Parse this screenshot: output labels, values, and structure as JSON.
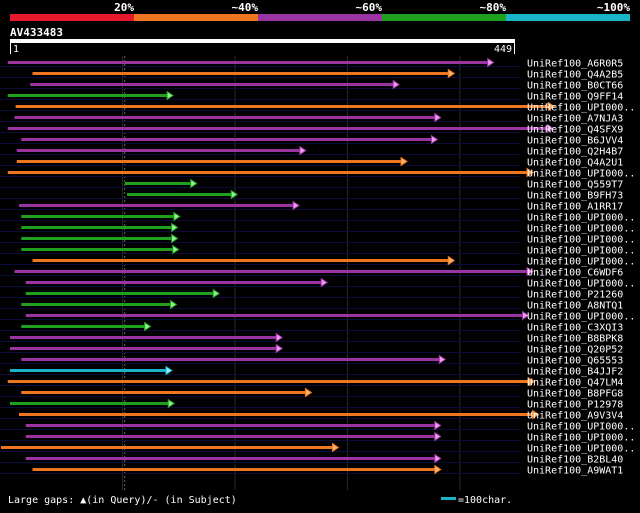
{
  "legend": {
    "segments": [
      {
        "label": "",
        "color": "#e8192c"
      },
      {
        "label": "20%",
        "color": "#ef7620"
      },
      {
        "label": "~40%",
        "color": "#9b34a3"
      },
      {
        "label": "~60%",
        "color": "#1ea01e"
      },
      {
        "label": "~80%",
        "color": "#19b4c8"
      },
      {
        "label": "~100%",
        "color": ""
      }
    ]
  },
  "query": {
    "id": "AV433483",
    "start_label": "1",
    "end_label": "449",
    "length": 449
  },
  "footer": {
    "gaps_label": "Large gaps: ▲(in Query)/- (in Subject)",
    "scale_label": "=100char.",
    "scale_color": "#19b4c8"
  },
  "hits": [
    {
      "name": "UniRef100_A6R0R5",
      "start": -2,
      "end": 430,
      "color": "purple"
    },
    {
      "name": "UniRef100_Q4A2B5",
      "start": 20,
      "end": 395,
      "color": "orange"
    },
    {
      "name": "UniRef100_B0CT66",
      "start": 18,
      "end": 346,
      "color": "purple"
    },
    {
      "name": "UniRef100_Q9FF14",
      "start": -2,
      "end": 145,
      "color": "green"
    },
    {
      "name": "UniRef100_UPI000..",
      "start": 5,
      "end": 484,
      "color": "orange"
    },
    {
      "name": "UniRef100_A7NJA3",
      "start": 4,
      "end": 383,
      "color": "purple"
    },
    {
      "name": "UniRef100_Q4SFX9",
      "start": -2,
      "end": 483,
      "color": "purple"
    },
    {
      "name": "UniRef100_B6JVV4",
      "start": 10,
      "end": 380,
      "color": "purple"
    },
    {
      "name": "UniRef100_Q2H4B7",
      "start": 6,
      "end": 263,
      "color": "purple"
    },
    {
      "name": "UniRef100_Q4A2U1",
      "start": 6,
      "end": 353,
      "color": "orange"
    },
    {
      "name": "UniRef100_UPI000..",
      "start": -2,
      "end": 465,
      "color": "orange"
    },
    {
      "name": "UniRef100_Q559T7",
      "start": 102,
      "end": 166,
      "color": "green"
    },
    {
      "name": "UniRef100_B9FH73",
      "start": 104,
      "end": 202,
      "color": "green"
    },
    {
      "name": "UniRef100_A1RR17",
      "start": 8,
      "end": 257,
      "color": "purple"
    },
    {
      "name": "UniRef100_UPI000..",
      "start": 10,
      "end": 151,
      "color": "green"
    },
    {
      "name": "UniRef100_UPI000..",
      "start": 10,
      "end": 149,
      "color": "green"
    },
    {
      "name": "UniRef100_UPI000..",
      "start": 10,
      "end": 149,
      "color": "green"
    },
    {
      "name": "UniRef100_UPI000..",
      "start": 10,
      "end": 150,
      "color": "green"
    },
    {
      "name": "UniRef100_UPI000..",
      "start": 20,
      "end": 395,
      "color": "orange"
    },
    {
      "name": "UniRef100_C6WDF6",
      "start": 4,
      "end": 465,
      "color": "purple"
    },
    {
      "name": "UniRef100_UPI000..",
      "start": 14,
      "end": 282,
      "color": "purple"
    },
    {
      "name": "UniRef100_P21260",
      "start": 14,
      "end": 186,
      "color": "green"
    },
    {
      "name": "UniRef100_A8NTQ1",
      "start": 10,
      "end": 148,
      "color": "green"
    },
    {
      "name": "UniRef100_UPI000..",
      "start": 14,
      "end": 461,
      "color": "purple"
    },
    {
      "name": "UniRef100_C3XQI3",
      "start": 10,
      "end": 125,
      "color": "green"
    },
    {
      "name": "UniRef100_B8BPK8",
      "start": 0,
      "end": 242,
      "color": "purple"
    },
    {
      "name": "UniRef100_Q20P52",
      "start": 0,
      "end": 242,
      "color": "purple"
    },
    {
      "name": "UniRef100_Q65553",
      "start": 10,
      "end": 387,
      "color": "purple"
    },
    {
      "name": "UniRef100_B4JJF2",
      "start": 0,
      "end": 144,
      "color": "cyan"
    },
    {
      "name": "UniRef100_Q47LM4",
      "start": -2,
      "end": 466,
      "color": "orange"
    },
    {
      "name": "UniRef100_B8PFG8",
      "start": 10,
      "end": 268,
      "color": "orange"
    },
    {
      "name": "UniRef100_P12978",
      "start": 0,
      "end": 146,
      "color": "green"
    },
    {
      "name": "UniRef100_A9V3V4",
      "start": 8,
      "end": 470,
      "color": "orange"
    },
    {
      "name": "UniRef100_UPI000..",
      "start": 14,
      "end": 383,
      "color": "purple"
    },
    {
      "name": "UniRef100_UPI000..",
      "start": 14,
      "end": 383,
      "color": "purple"
    },
    {
      "name": "UniRef100_UPI000..",
      "start": -8,
      "end": 292,
      "color": "orange"
    },
    {
      "name": "UniRef100_B2BL40",
      "start": 14,
      "end": 383,
      "color": "purple"
    },
    {
      "name": "UniRef100_A9WAT1",
      "start": 20,
      "end": 383,
      "color": "orange"
    }
  ]
}
